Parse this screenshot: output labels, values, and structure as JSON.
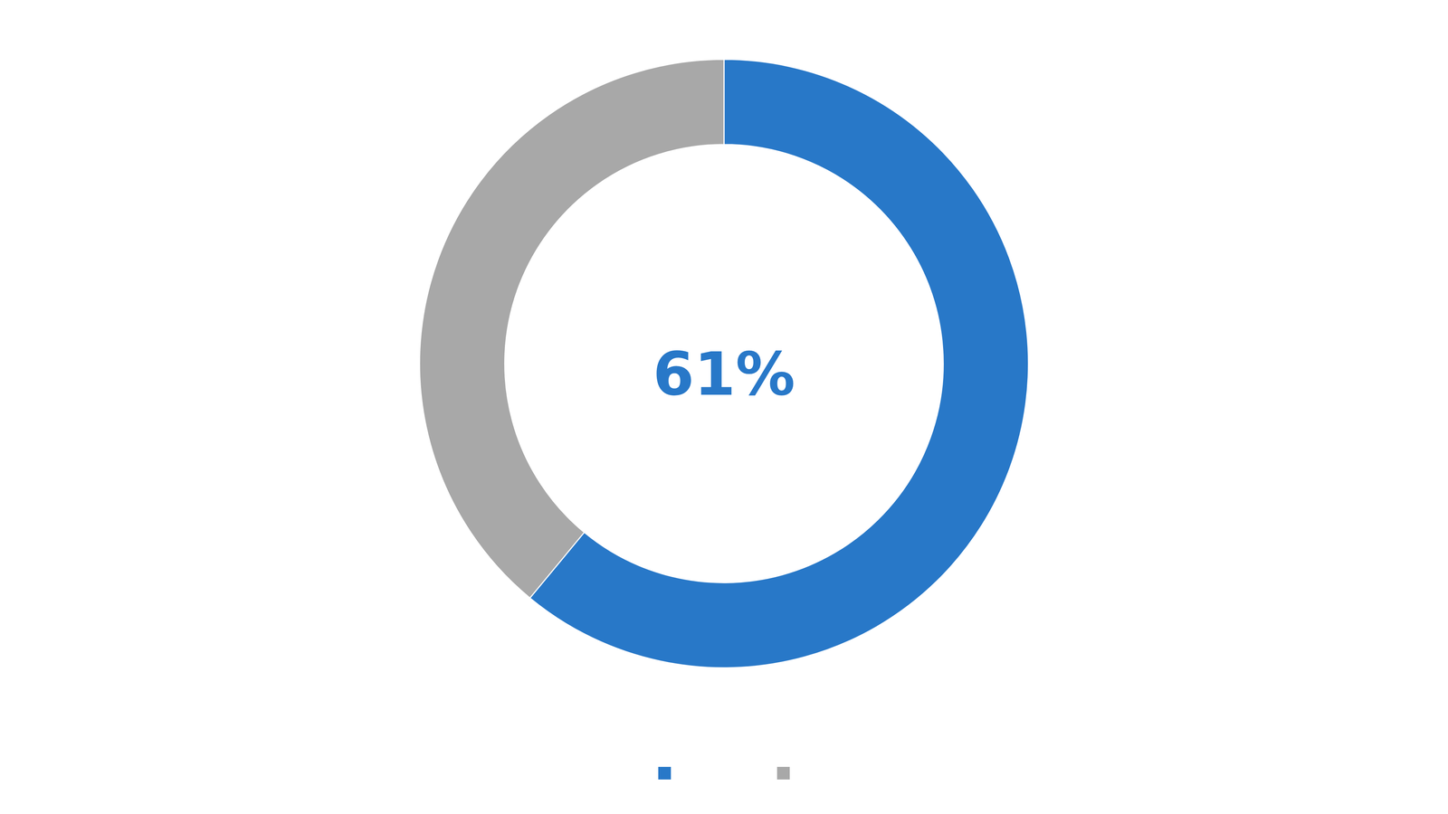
{
  "chart_data": {
    "type": "donut",
    "values": [
      61,
      39
    ],
    "colors": [
      "#2878C8",
      "#A8A8A8"
    ],
    "annotations": [
      {
        "text": "61%",
        "color": "#2878C8"
      }
    ],
    "legend": "bottom"
  }
}
